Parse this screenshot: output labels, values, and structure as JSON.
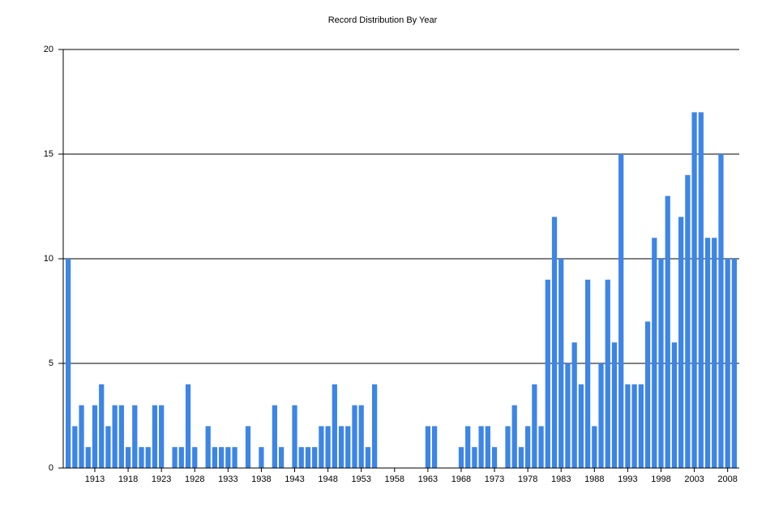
{
  "chart_data": {
    "type": "bar",
    "title": "Record Distribution By Year",
    "categories": [
      null,
      null,
      null,
      null,
      "1913",
      null,
      null,
      null,
      null,
      "1918",
      null,
      null,
      null,
      null,
      "1923",
      null,
      null,
      null,
      null,
      "1928",
      null,
      null,
      null,
      null,
      "1933",
      null,
      null,
      null,
      null,
      "1938",
      null,
      null,
      null,
      null,
      "1943",
      null,
      null,
      null,
      null,
      "1948",
      null,
      null,
      null,
      null,
      "1953",
      null,
      null,
      null,
      null,
      "1958",
      null,
      null,
      null,
      null,
      "1963",
      null,
      null,
      null,
      null,
      "1968",
      null,
      null,
      null,
      null,
      "1973",
      null,
      null,
      null,
      null,
      "1978",
      null,
      null,
      null,
      null,
      "1983",
      null,
      null,
      null,
      null,
      "1988",
      null,
      null,
      null,
      null,
      "1993",
      null,
      null,
      null,
      null,
      "1998",
      null,
      null,
      null,
      null,
      "2003",
      null,
      null,
      null,
      null,
      "2008",
      null
    ],
    "values": [
      10,
      2,
      3,
      1,
      3,
      4,
      2,
      3,
      3,
      1,
      3,
      1,
      1,
      3,
      3,
      0,
      1,
      1,
      4,
      1,
      0,
      2,
      1,
      1,
      1,
      1,
      0,
      2,
      0,
      1,
      0,
      3,
      1,
      0,
      3,
      1,
      1,
      1,
      2,
      2,
      4,
      2,
      2,
      3,
      3,
      1,
      4,
      0,
      0,
      0,
      0,
      0,
      0,
      0,
      2,
      2,
      0,
      0,
      0,
      1,
      2,
      1,
      2,
      2,
      1,
      0,
      2,
      3,
      1,
      2,
      4,
      2,
      9,
      12,
      10,
      5,
      6,
      4,
      9,
      2,
      5,
      9,
      6,
      15,
      4,
      4,
      4,
      7,
      11,
      10,
      13,
      6,
      12,
      14,
      17,
      17,
      11,
      11,
      15,
      10,
      10
    ],
    "color": "#3d85e6",
    "ylim": [
      0,
      20
    ],
    "yticks": [
      0,
      5,
      10,
      15,
      20
    ],
    "grid": true
  }
}
